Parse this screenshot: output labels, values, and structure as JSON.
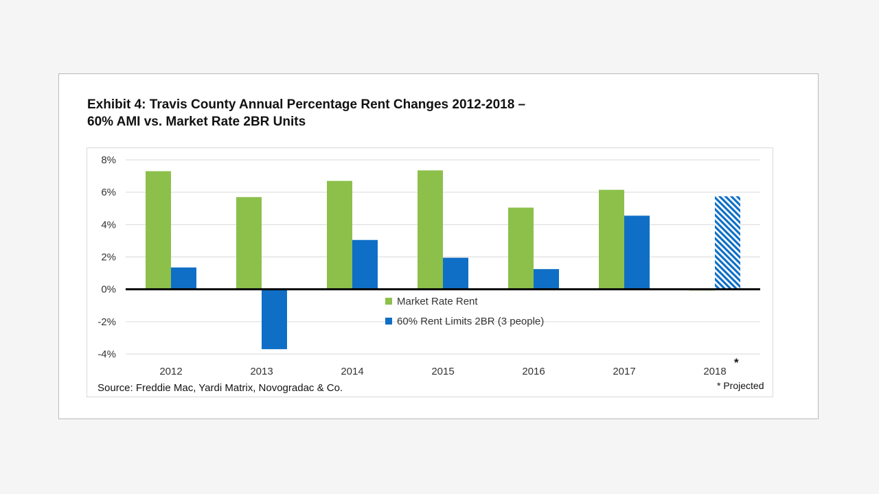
{
  "chart_data": {
    "type": "bar",
    "title_lines": [
      "Exhibit 4: Travis County Annual Percentage Rent Changes 2012-2018 –",
      "60% AMI vs. Market Rate 2BR Units"
    ],
    "categories": [
      "2012",
      "2013",
      "2014",
      "2015",
      "2016",
      "2017",
      "2018"
    ],
    "category_marker": {
      "2018": "*"
    },
    "y_ticks": [
      "8%",
      "6%",
      "4%",
      "2%",
      "0%",
      "-2%",
      "-4%"
    ],
    "ylim": [
      -4,
      8
    ],
    "grid": true,
    "series": [
      {
        "name": "Market Rate Rent",
        "color": "#8cc04b",
        "values": [
          7.3,
          5.7,
          6.7,
          7.35,
          5.05,
          6.15,
          0.0
        ]
      },
      {
        "name": "60% Rent Limits 2BR (3 people)",
        "color": "#0f6fc6",
        "values": [
          1.35,
          -3.7,
          3.05,
          1.95,
          1.25,
          4.55,
          5.75
        ],
        "projected": [
          "2018"
        ]
      }
    ],
    "legend_position": "center-bottom",
    "source": "Source: Freddie Mac, Yardi Matrix, Novogradac & Co.",
    "footnote": "* Projected"
  }
}
